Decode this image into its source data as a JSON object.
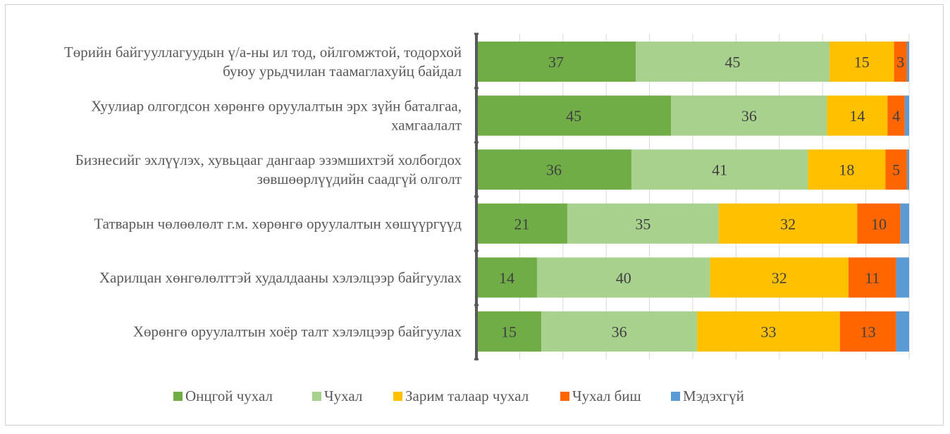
{
  "chart_data": {
    "type": "bar",
    "orientation": "horizontal",
    "stacked": true,
    "stack_mode": "percent",
    "categories": [
      [
        "Төрийн байгууллагуудын ү/а-ны ил тод, ойлгомжтой, тодорхой",
        "буюу урьдчилан таамаглахуйц байдал"
      ],
      [
        "Хуулиар олгогдсон хөрөнгө оруулалтын эрх зүйн баталгаа,",
        "хамгаалалт"
      ],
      [
        "Бизнесийг эхлүүлэх, хувьцааг дангаар эзэмшихтэй холбогдох",
        "зөвшөөрлүүдийн саадгүй олголт"
      ],
      [
        "Татварын чөлөөлөлт г.м. хөрөнгө оруулалтын хөшүүргүүд"
      ],
      [
        "Харилцан хөнгөлөлттэй худалдааны хэлэлцээр байгуулах"
      ],
      [
        "Хөрөнгө оруулалтын хоёр талт хэлэлцээр байгуулах"
      ]
    ],
    "series": [
      {
        "name": "Онцгой чухал",
        "color": "#70ad47",
        "values": [
          37,
          45,
          36,
          21,
          14,
          15
        ]
      },
      {
        "name": "Чухал",
        "color": "#a9d18e",
        "values": [
          45,
          36,
          41,
          35,
          40,
          36
        ]
      },
      {
        "name": "Зарим талаар чухал",
        "color": "#ffc000",
        "values": [
          15,
          14,
          18,
          32,
          32,
          33
        ]
      },
      {
        "name": "Чухал биш",
        "color": "#ff6600",
        "values": [
          3,
          4,
          5,
          10,
          11,
          13
        ]
      },
      {
        "name": "Мэдэхгүй",
        "color": "#5b9bd5",
        "values": [
          0.5,
          1,
          0.5,
          2,
          3,
          3
        ]
      }
    ],
    "data_labels_for_series": [
      "Онцгой чухал",
      "Чухал",
      "Зарим талаар чухал",
      "Чухал биш"
    ],
    "legend_position": "bottom",
    "grid": "vertical",
    "axis_labels_visible": false
  }
}
